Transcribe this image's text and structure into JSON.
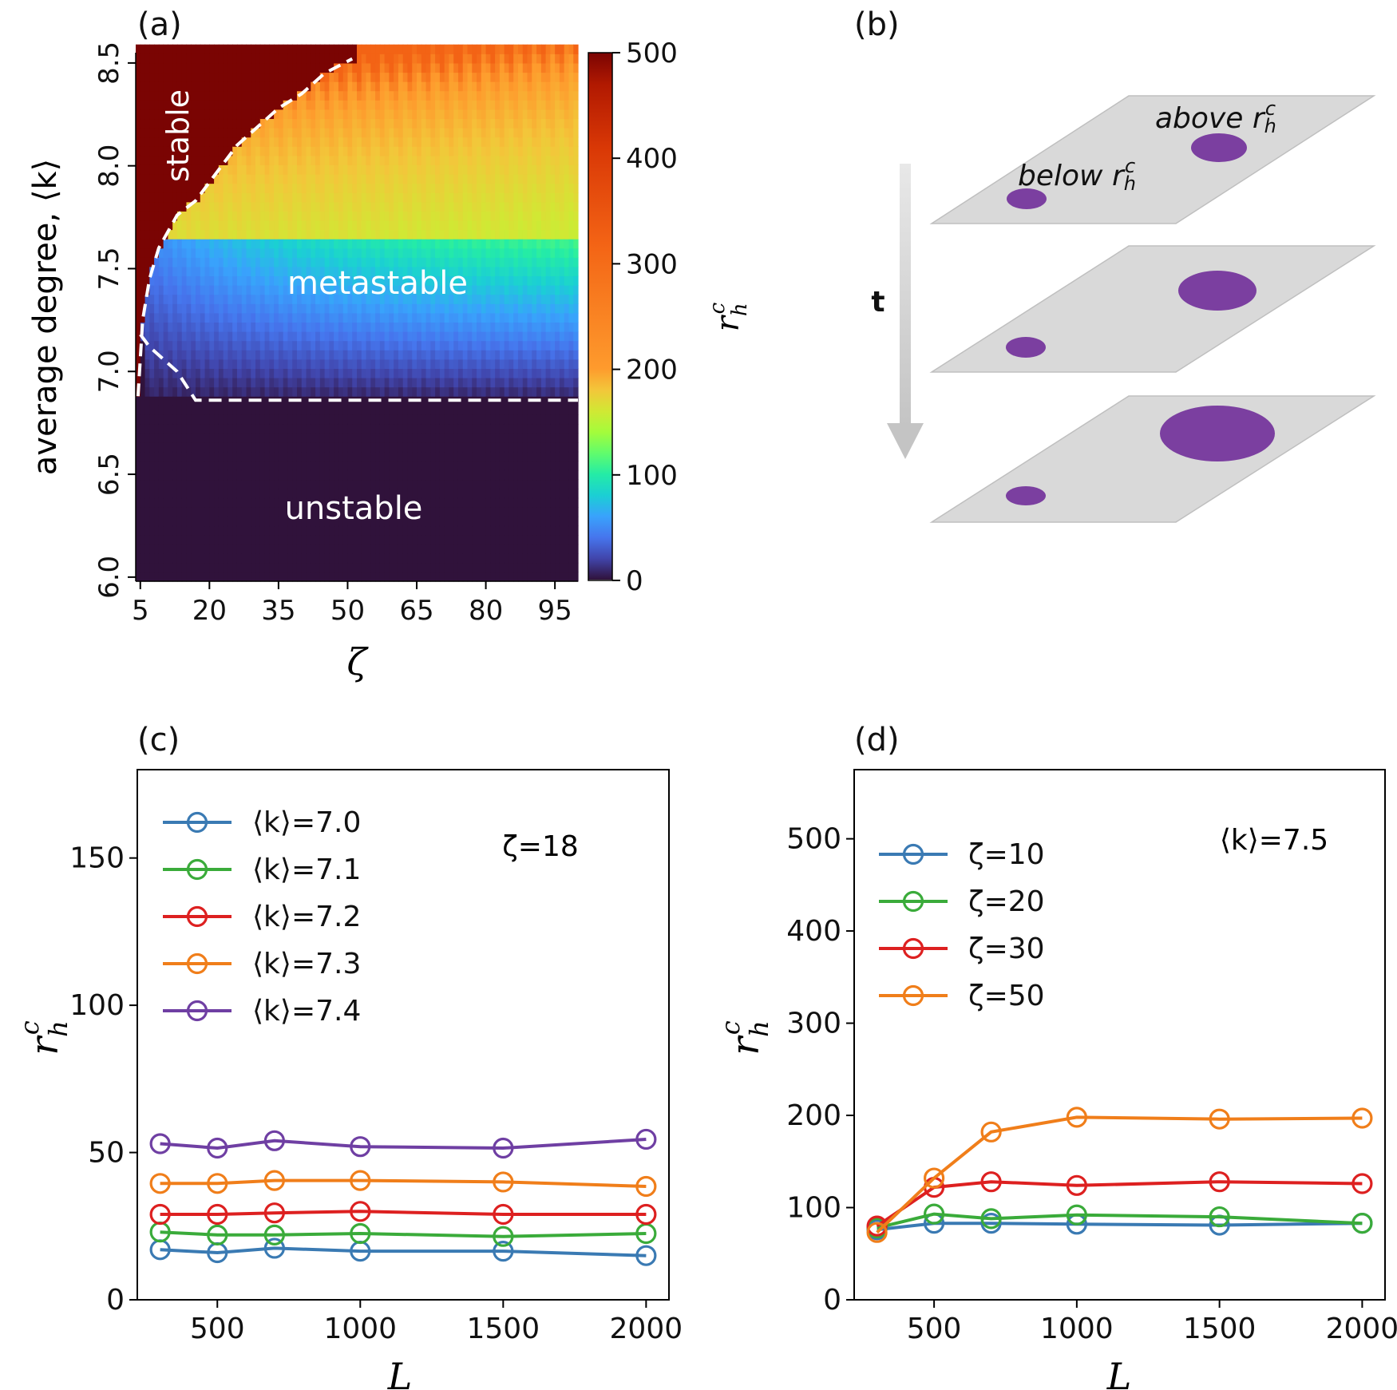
{
  "colors": {
    "blue": "#3a7ab3",
    "green": "#3aab3a",
    "red": "#dd2020",
    "orange": "#f07e1a",
    "purple": "#6f3fa3",
    "stable_red": "#7a0d0d",
    "unstable_dark": "#2e1440",
    "plane": "#d9d9d9",
    "blob": "#7b3fa0",
    "arrow": "#c8c8c8"
  },
  "chart_data": [
    {
      "panel": "(a)",
      "type": "heatmap",
      "xlabel": "ζ",
      "ylabel": "average degree, ⟨k⟩",
      "x_ticks": [
        "5",
        "20",
        "35",
        "50",
        "65",
        "80",
        "95"
      ],
      "y_ticks": [
        "6.0",
        "6.5",
        "7.0",
        "7.5",
        "8.0",
        "8.5"
      ],
      "xlim": [
        4,
        100
      ],
      "ylim": [
        5.98,
        8.55
      ],
      "colorbar": {
        "label": "r_h^c",
        "ticks": [
          "0",
          "100",
          "200",
          "300",
          "400",
          "500"
        ],
        "range": [
          0,
          500
        ]
      },
      "region_labels": [
        "stable",
        "metastable",
        "unstable"
      ],
      "stable_boundary": {
        "zeta": [
          4.5,
          5.5,
          7,
          9,
          13,
          17,
          20,
          26,
          32,
          35,
          40,
          45,
          51
        ],
        "k": [
          6.88,
          7.25,
          7.45,
          7.6,
          7.76,
          7.83,
          7.92,
          8.1,
          8.22,
          8.28,
          8.35,
          8.45,
          8.52
        ]
      },
      "unstable_boundary": {
        "zeta": [
          5,
          7,
          13,
          17,
          100
        ],
        "k": [
          7.18,
          7.12,
          7.0,
          6.86,
          6.86
        ]
      }
    },
    {
      "panel": "(c)",
      "type": "line",
      "xlabel": "L",
      "ylabel": "r_h^c",
      "annotation": "ζ=18",
      "x": [
        300,
        500,
        700,
        1000,
        1500,
        2000
      ],
      "x_ticks": [
        "500",
        "1000",
        "1500",
        "2000"
      ],
      "y_ticks": [
        "0",
        "50",
        "100",
        "150"
      ],
      "xlim": [
        220,
        2080
      ],
      "ylim": [
        0,
        180
      ],
      "legend_position": "upper-left",
      "series": [
        {
          "name": "⟨k⟩=7.0",
          "values": [
            17,
            16,
            17.5,
            16.5,
            16.5,
            15
          ]
        },
        {
          "name": "⟨k⟩=7.1",
          "values": [
            23,
            22,
            22,
            22.5,
            21.5,
            22.5
          ]
        },
        {
          "name": "⟨k⟩=7.2",
          "values": [
            29,
            29,
            29.5,
            30,
            29,
            29
          ]
        },
        {
          "name": "⟨k⟩=7.3",
          "values": [
            39.5,
            39.5,
            40.5,
            40.5,
            40,
            38.5
          ]
        },
        {
          "name": "⟨k⟩=7.4",
          "values": [
            53,
            51.5,
            54,
            52,
            51.5,
            54.5
          ]
        }
      ]
    },
    {
      "panel": "(d)",
      "type": "line",
      "xlabel": "L",
      "ylabel": "r_h^c",
      "annotation": "⟨k⟩=7.5",
      "x": [
        300,
        500,
        700,
        1000,
        1500,
        2000
      ],
      "x_ticks": [
        "500",
        "1000",
        "1500",
        "2000"
      ],
      "y_ticks": [
        "0",
        "100",
        "200",
        "300",
        "400",
        "500"
      ],
      "xlim": [
        220,
        2080
      ],
      "ylim": [
        0,
        575
      ],
      "legend_position": "upper-left",
      "series": [
        {
          "name": "ζ=10",
          "values": [
            76,
            83,
            83,
            82,
            81,
            83
          ]
        },
        {
          "name": "ζ=20",
          "values": [
            78,
            93,
            88,
            92,
            90,
            83
          ]
        },
        {
          "name": "ζ=30",
          "values": [
            80,
            122,
            128,
            124,
            128,
            126
          ]
        },
        {
          "name": "ζ=50",
          "values": [
            73,
            132,
            182,
            198,
            196,
            197
          ]
        }
      ]
    }
  ],
  "panel_b": {
    "title": "(b)",
    "time_label": "t",
    "above_label": "above",
    "below_label": "below",
    "threshold_symbol": "r",
    "threshold_sub": "h",
    "threshold_sup": "c"
  }
}
